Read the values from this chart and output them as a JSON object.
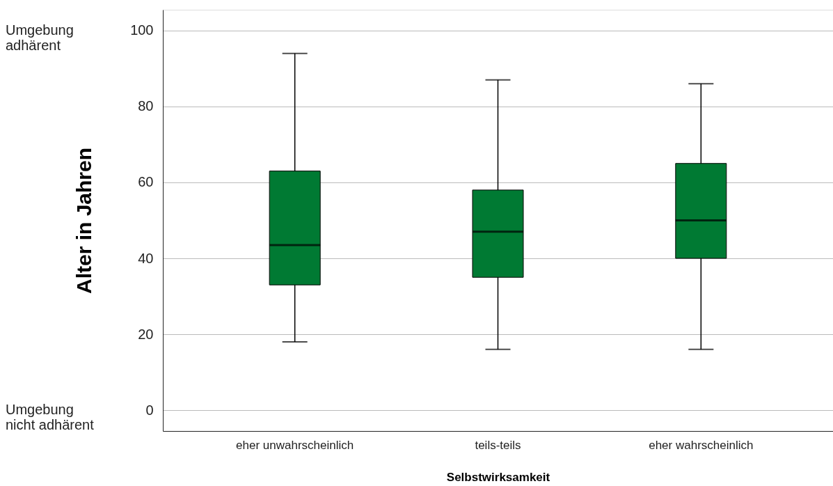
{
  "chart_data": {
    "type": "box",
    "xlabel": "Selbstwirksamkeit",
    "ylabel": "Alter in Jahren",
    "categories": [
      "eher unwahrscheinlich",
      "teils-teils",
      "eher wahrscheinlich"
    ],
    "boxes": [
      {
        "low": 18,
        "q1": 33,
        "median": 43.5,
        "q3": 63,
        "high": 94
      },
      {
        "low": 16,
        "q1": 35,
        "median": 47,
        "q3": 58,
        "high": 87
      },
      {
        "low": 16,
        "q1": 40,
        "median": 50,
        "q3": 65,
        "high": 86
      }
    ],
    "color": "#007a33",
    "ylim": [
      -5.5,
      105.5
    ],
    "yticks": [
      0,
      20,
      40,
      60,
      80,
      100
    ],
    "grid": "y",
    "annotations": [
      "Umgebung\nadhärent",
      "Umgebung\nnicht adhärent"
    ]
  }
}
